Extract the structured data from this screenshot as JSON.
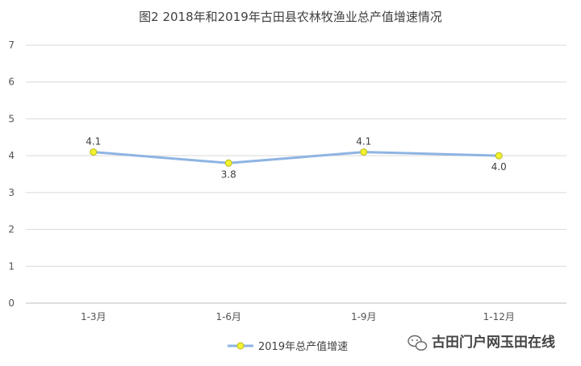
{
  "chart_data": {
    "type": "line",
    "title": "图2 2018年和2019年古田县农林牧渔业总产值增速情况",
    "categories": [
      "1-3月",
      "1-6月",
      "1-9月",
      "1-12月"
    ],
    "series": [
      {
        "name": "2019年总产值增速",
        "values": [
          4.1,
          3.8,
          4.1,
          4.0
        ],
        "labels": [
          "4.1",
          "3.8",
          "4.1",
          "4.0"
        ],
        "color": "#8EB4E3",
        "marker_color": "#F2F230"
      }
    ],
    "ylim": [
      0,
      7
    ],
    "yticks": [
      "0",
      "1",
      "2",
      "3",
      "4",
      "5",
      "6",
      "7"
    ],
    "grid": true,
    "legend_position": "bottom"
  },
  "watermark": {
    "text": "古田门户网玉田在线",
    "icon": "wechat-icon"
  }
}
